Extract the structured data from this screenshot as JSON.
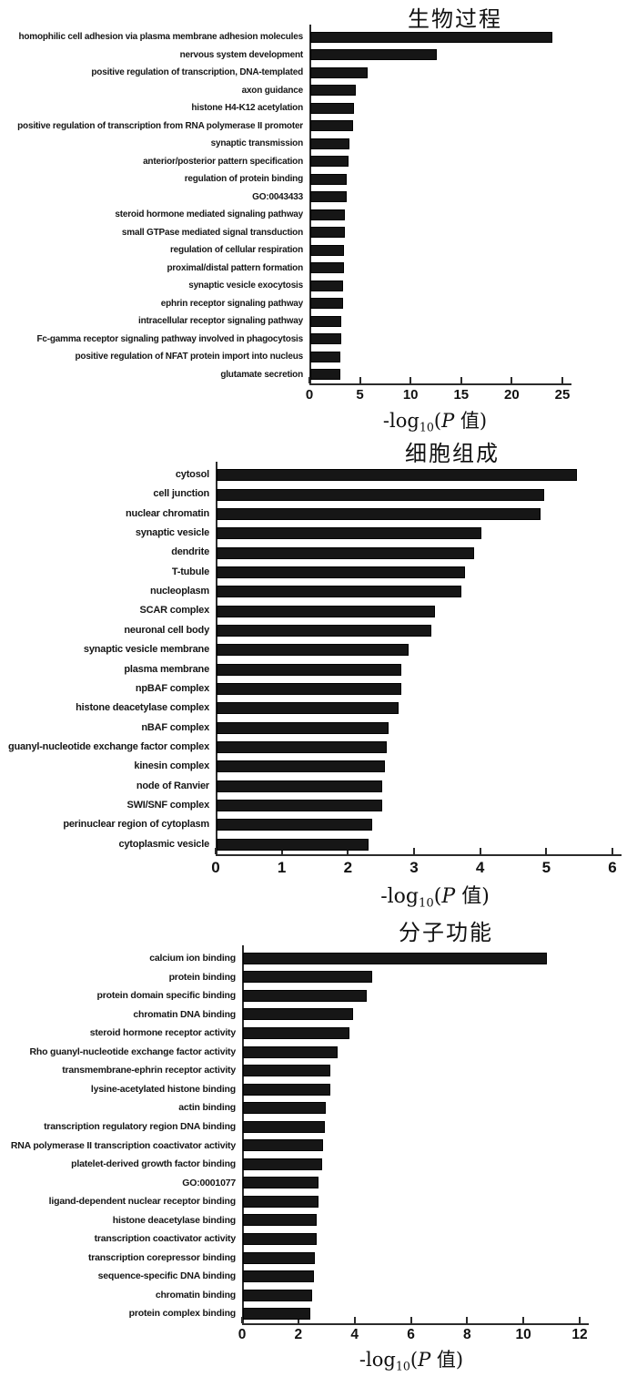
{
  "figure": {
    "bar_color": "#161616",
    "axis_color": "#2b2b2b",
    "text_color": "#111111",
    "axis_label": {
      "prefix": "-log",
      "subscript": "10",
      "open": "(",
      "variable": "P",
      "suffix": " 值)"
    }
  },
  "chart_data": [
    {
      "type": "bar",
      "orientation": "horizontal",
      "title": "生物过程",
      "xlabel": "-log10(P 值)",
      "xlim": [
        0,
        25
      ],
      "xticks": [
        0,
        5,
        10,
        15,
        20,
        25
      ],
      "grid": false,
      "legend": null,
      "categories": [
        "homophilic cell adhesion via plasma membrane adhesion molecules",
        "nervous system development",
        "positive regulation of transcription, DNA-templated",
        "axon guidance",
        "histone H4-K12 acetylation",
        "positive regulation of transcription from RNA polymerase II promoter",
        "synaptic transmission",
        "anterior/posterior pattern specification",
        "regulation of protein binding",
        "GO:0043433",
        "steroid hormone mediated signaling pathway",
        "small GTPase mediated signal transduction",
        "regulation of cellular respiration",
        "proximal/distal pattern formation",
        "synaptic vesicle exocytosis",
        "ephrin receptor signaling pathway",
        "intracellular receptor signaling pathway",
        "Fc-gamma receptor signaling pathway involved in phagocytosis",
        "positive regulation of NFAT protein import into nucleus",
        "glutamate secretion"
      ],
      "values": [
        23.9,
        12.5,
        5.7,
        4.5,
        4.3,
        4.2,
        3.9,
        3.8,
        3.6,
        3.6,
        3.4,
        3.4,
        3.3,
        3.3,
        3.2,
        3.2,
        3.1,
        3.1,
        3.0,
        3.0
      ]
    },
    {
      "type": "bar",
      "orientation": "horizontal",
      "title": "细胞组成",
      "xlabel": "-log10(P 值)",
      "xlim": [
        0,
        6
      ],
      "xticks": [
        0,
        1,
        2,
        3,
        4,
        5,
        6
      ],
      "grid": false,
      "legend": null,
      "categories": [
        "cytosol",
        "cell junction",
        "nuclear chromatin",
        "synaptic vesicle",
        "dendrite",
        "T-tubule",
        "nucleoplasm",
        "SCAR complex",
        "neuronal cell body",
        "synaptic vesicle membrane",
        "plasma membrane",
        "npBAF complex",
        "histone deacetylase complex",
        "nBAF complex",
        "guanyl-nucleotide exchange factor complex",
        "kinesin complex",
        "node of Ranvier",
        "SWI/SNF complex",
        "perinuclear region of cytoplasm",
        "cytoplasmic vesicle"
      ],
      "values": [
        5.45,
        4.95,
        4.9,
        4.0,
        3.9,
        3.75,
        3.7,
        3.3,
        3.25,
        2.9,
        2.8,
        2.8,
        2.75,
        2.6,
        2.57,
        2.55,
        2.5,
        2.5,
        2.35,
        2.3
      ]
    },
    {
      "type": "bar",
      "orientation": "horizontal",
      "title": "分子功能",
      "xlabel": "-log10(P 值)",
      "xlim": [
        0,
        12
      ],
      "xticks": [
        0,
        2,
        4,
        6,
        8,
        10,
        12
      ],
      "grid": false,
      "legend": null,
      "categories": [
        "calcium ion binding",
        "protein binding",
        "protein domain specific binding",
        "chromatin DNA binding",
        "steroid hormone receptor activity",
        "Rho guanyl-nucleotide exchange factor activity",
        "transmembrane-ephrin receptor activity",
        "lysine-acetylated histone binding",
        "actin binding",
        "transcription regulatory region DNA binding",
        "RNA polymerase II transcription coactivator activity",
        "platelet-derived growth factor binding",
        "GO:0001077",
        "ligand-dependent nuclear receptor binding",
        "histone deacetylase binding",
        "transcription coactivator activity",
        "transcription corepressor binding",
        "sequence-specific DNA binding",
        "chromatin binding",
        "protein complex binding"
      ],
      "values": [
        10.8,
        4.6,
        4.4,
        3.9,
        3.8,
        3.35,
        3.1,
        3.1,
        2.95,
        2.9,
        2.85,
        2.8,
        2.7,
        2.67,
        2.63,
        2.62,
        2.55,
        2.52,
        2.45,
        2.4
      ]
    }
  ]
}
